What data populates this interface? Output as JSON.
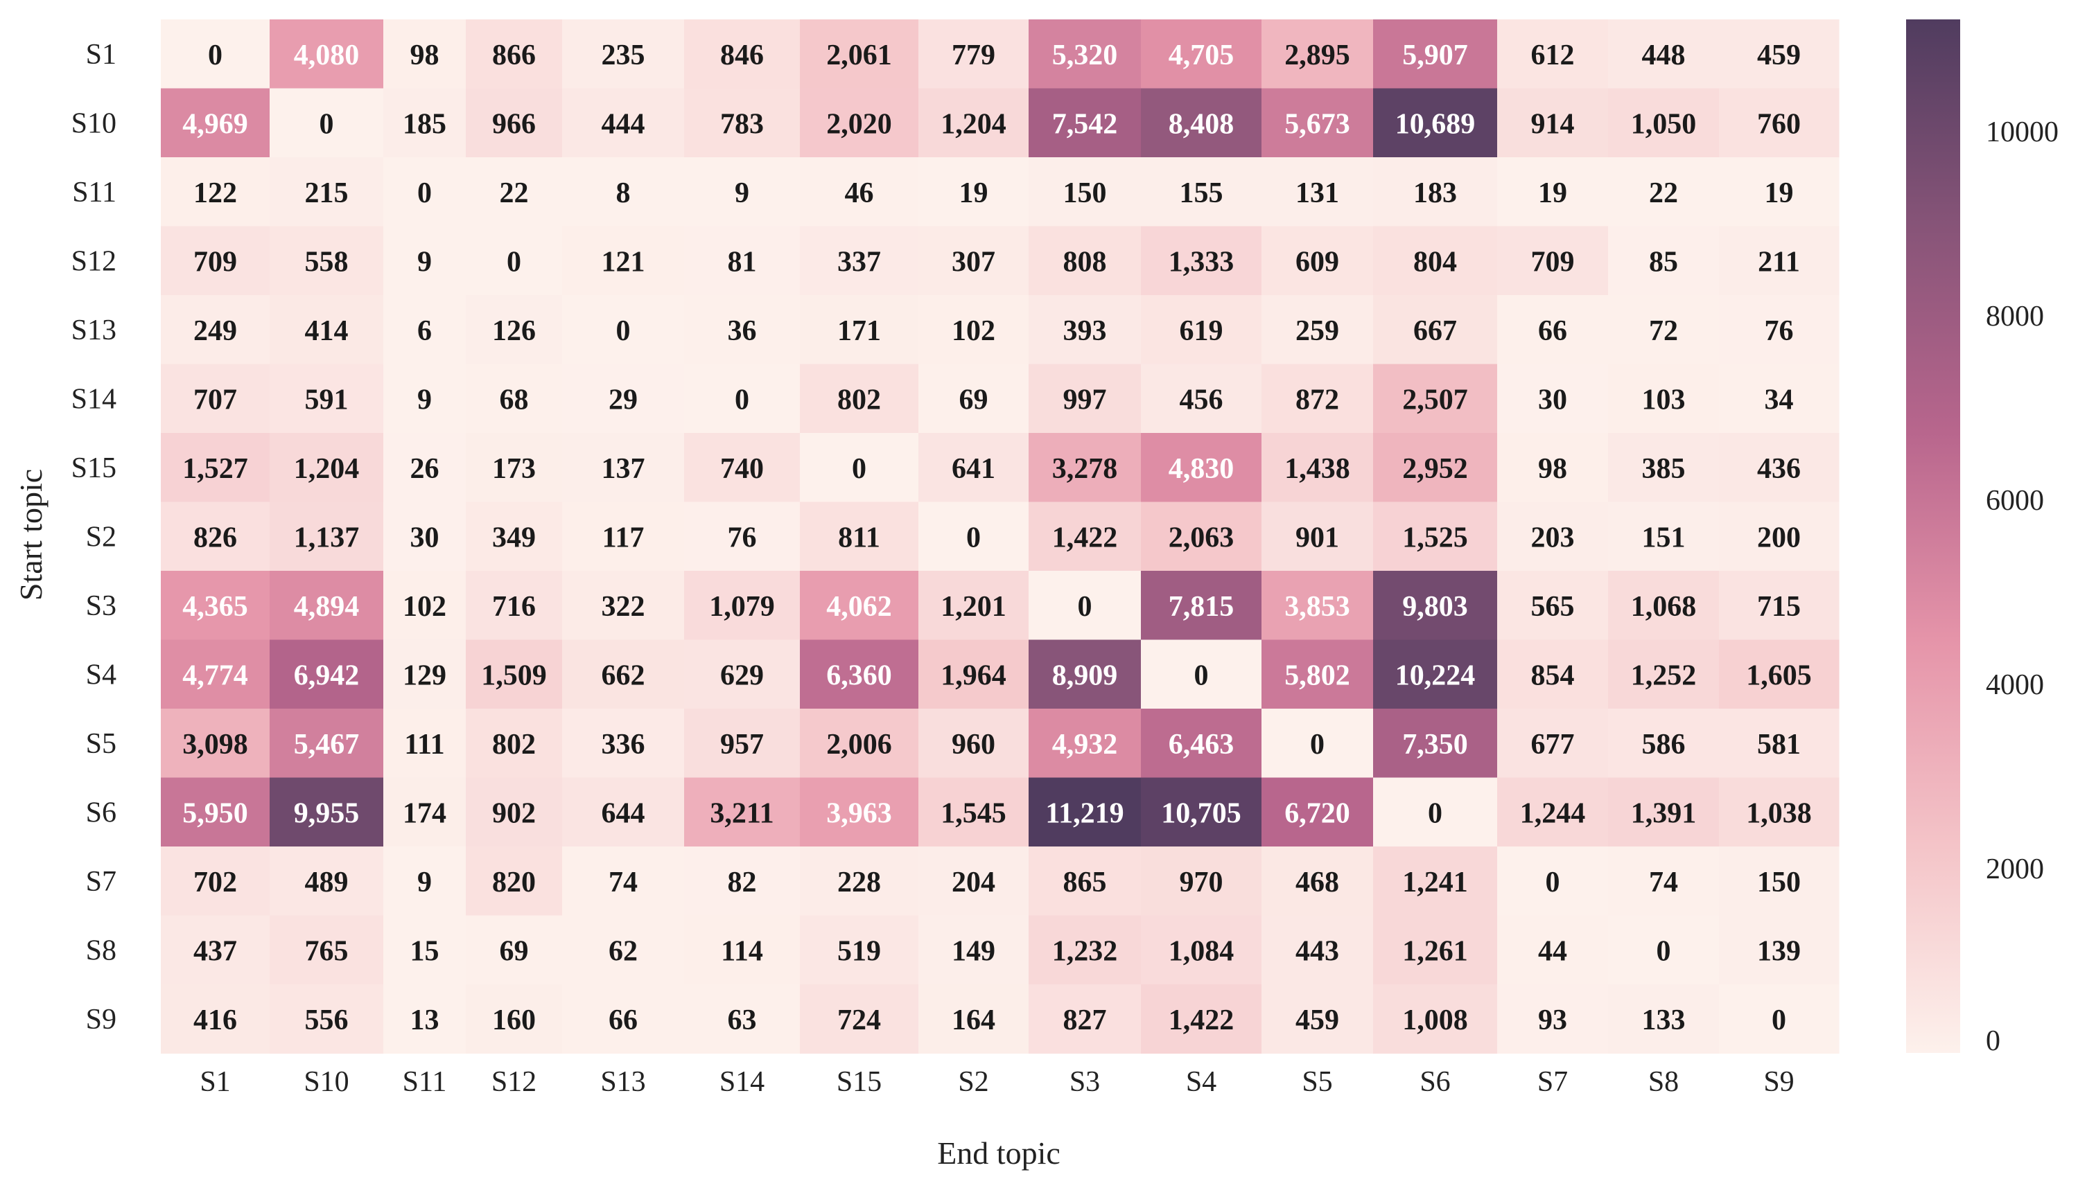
{
  "chart_data": {
    "type": "heatmap",
    "xlabel": "End topic",
    "ylabel": "Start topic",
    "rows": [
      "S1",
      "S10",
      "S11",
      "S12",
      "S13",
      "S14",
      "S15",
      "S2",
      "S3",
      "S4",
      "S5",
      "S6",
      "S7",
      "S8",
      "S9"
    ],
    "cols": [
      "S1",
      "S10",
      "S11",
      "S12",
      "S13",
      "S14",
      "S15",
      "S2",
      "S3",
      "S4",
      "S5",
      "S6",
      "S7",
      "S8",
      "S9"
    ],
    "values": [
      [
        0,
        4080,
        98,
        866,
        235,
        846,
        2061,
        779,
        5320,
        4705,
        2895,
        5907,
        612,
        448,
        459
      ],
      [
        4969,
        0,
        185,
        966,
        444,
        783,
        2020,
        1204,
        7542,
        8408,
        5673,
        10689,
        914,
        1050,
        760
      ],
      [
        122,
        215,
        0,
        22,
        8,
        9,
        46,
        19,
        150,
        155,
        131,
        183,
        19,
        22,
        19
      ],
      [
        709,
        558,
        9,
        0,
        121,
        81,
        337,
        307,
        808,
        1333,
        609,
        804,
        709,
        85,
        211
      ],
      [
        249,
        414,
        6,
        126,
        0,
        36,
        171,
        102,
        393,
        619,
        259,
        667,
        66,
        72,
        76
      ],
      [
        707,
        591,
        9,
        68,
        29,
        0,
        802,
        69,
        997,
        456,
        872,
        2507,
        30,
        103,
        34
      ],
      [
        1527,
        1204,
        26,
        173,
        137,
        740,
        0,
        641,
        3278,
        4830,
        1438,
        2952,
        98,
        385,
        436
      ],
      [
        826,
        1137,
        30,
        349,
        117,
        76,
        811,
        0,
        1422,
        2063,
        901,
        1525,
        203,
        151,
        200
      ],
      [
        4365,
        4894,
        102,
        716,
        322,
        1079,
        4062,
        1201,
        0,
        7815,
        3853,
        9803,
        565,
        1068,
        715
      ],
      [
        4774,
        6942,
        129,
        1509,
        662,
        629,
        6360,
        1964,
        8909,
        0,
        5802,
        10224,
        854,
        1252,
        1605
      ],
      [
        3098,
        5467,
        111,
        802,
        336,
        957,
        2006,
        960,
        4932,
        6463,
        0,
        7350,
        677,
        586,
        581
      ],
      [
        5950,
        9955,
        174,
        902,
        644,
        3211,
        3963,
        1545,
        11219,
        10705,
        6720,
        0,
        1244,
        1391,
        1038
      ],
      [
        702,
        489,
        9,
        820,
        74,
        82,
        228,
        204,
        865,
        970,
        468,
        1241,
        0,
        74,
        150
      ],
      [
        437,
        765,
        15,
        69,
        62,
        114,
        519,
        149,
        1232,
        1084,
        443,
        1261,
        44,
        0,
        139
      ],
      [
        416,
        556,
        13,
        160,
        66,
        63,
        724,
        164,
        827,
        1422,
        459,
        1008,
        93,
        133,
        0
      ]
    ],
    "colorbar": {
      "min": 0,
      "max": 11219,
      "ticks": [
        0,
        2000,
        4000,
        6000,
        8000,
        10000
      ],
      "colors": [
        "#fdf1ec",
        "#f4c4c8",
        "#e594a9",
        "#b8668d",
        "#875478",
        "#503c5f"
      ]
    },
    "number_format": "thousands-comma",
    "grid": false,
    "legend": "colorbar-right"
  }
}
